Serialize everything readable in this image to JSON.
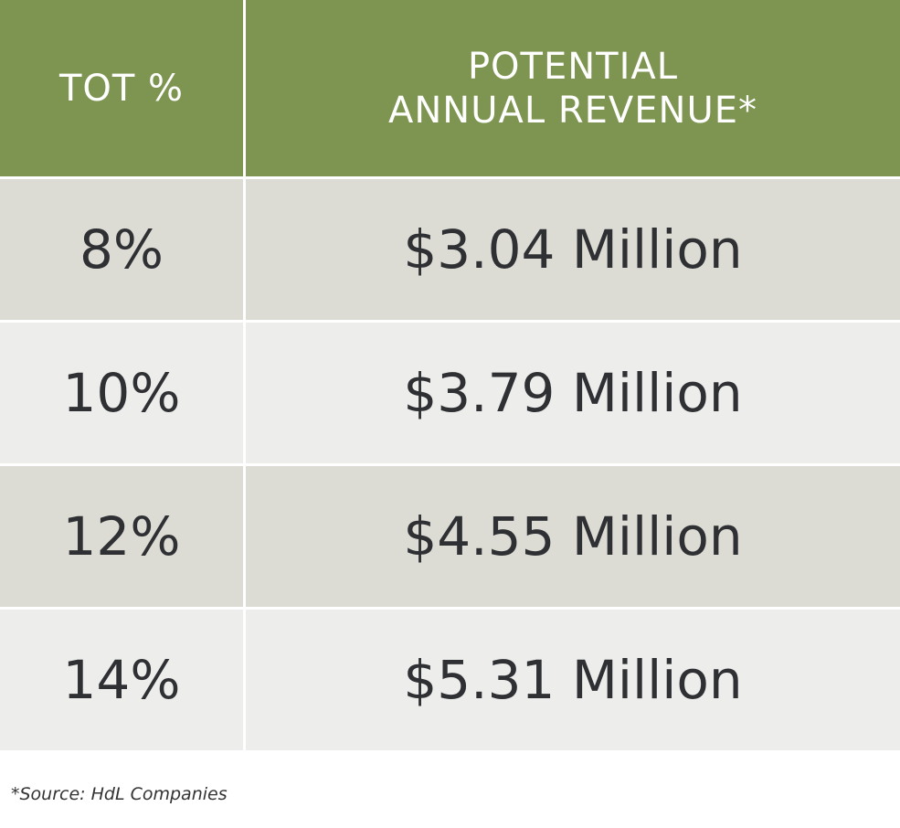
{
  "table": {
    "headers": [
      [
        "TOT %"
      ],
      [
        "POTENTIAL",
        "ANNUAL REVENUE*"
      ]
    ],
    "rows": [
      [
        "8%",
        "$3.04 Million"
      ],
      [
        "10%",
        "$3.79 Million"
      ],
      [
        "12%",
        "$4.55 Million"
      ],
      [
        "14%",
        "$5.31 Million"
      ]
    ]
  },
  "footnote": "*Source: HdL Companies"
}
